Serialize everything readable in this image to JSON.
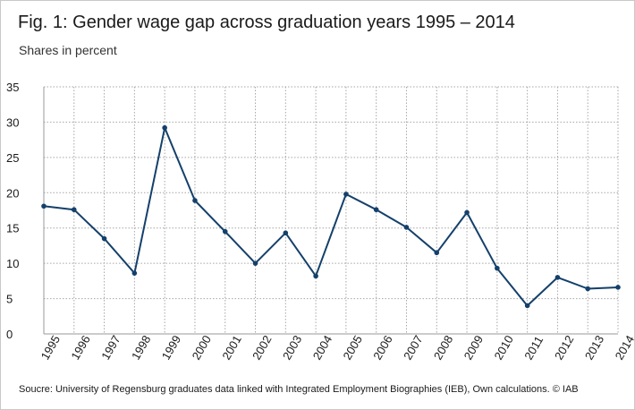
{
  "title": "Fig. 1: Gender wage gap across graduation years 1995 – 2014",
  "subtitle": "Shares in percent",
  "source": "Soucre: University of Regensburg graduates data  linked with Integrated Employment Biographies (IEB), Own calculations. © IAB",
  "colors": {
    "line": "#14406b",
    "grid": "#a6a6a6"
  },
  "chart_data": {
    "type": "line",
    "x": [
      "1995",
      "1996",
      "1997",
      "1998",
      "1999",
      "2000",
      "2001",
      "2002",
      "2003",
      "2004",
      "2005",
      "2006",
      "2007",
      "2008",
      "2009",
      "2010",
      "2011",
      "2012",
      "2013",
      "2014"
    ],
    "series": [
      {
        "values": [
          18.1,
          17.6,
          13.5,
          8.6,
          29.2,
          18.9,
          14.5,
          10.0,
          14.3,
          8.2,
          19.8,
          17.6,
          15.1,
          11.5,
          17.2,
          9.3,
          4.0,
          8.0,
          6.4,
          6.6
        ]
      }
    ],
    "ylim": [
      0,
      35
    ],
    "yticks": [
      0,
      5,
      10,
      15,
      20,
      25,
      30,
      35
    ],
    "grid": true,
    "xlabel": "",
    "ylabel": ""
  }
}
